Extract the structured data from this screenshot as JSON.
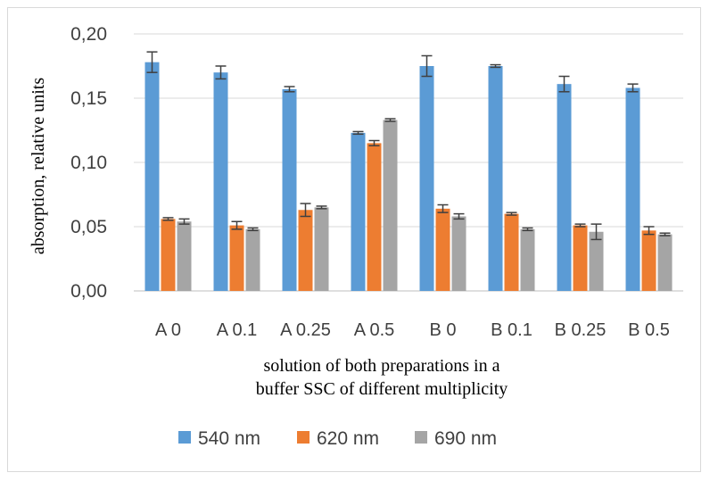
{
  "chart_data": {
    "type": "bar",
    "categories": [
      "A 0",
      "A 0.1",
      "A 0.25",
      "A 0.5",
      "B 0",
      "B 0.1",
      "B 0.25",
      "B 0.5"
    ],
    "series": [
      {
        "name": "540 nm",
        "color": "#5b9bd5",
        "values": [
          0.178,
          0.17,
          0.157,
          0.123,
          0.175,
          0.175,
          0.161,
          0.158
        ],
        "errors": [
          0.008,
          0.005,
          0.002,
          0.001,
          0.008,
          0.001,
          0.006,
          0.003
        ]
      },
      {
        "name": "620 nm",
        "color": "#ed7d31",
        "values": [
          0.056,
          0.051,
          0.063,
          0.115,
          0.064,
          0.06,
          0.051,
          0.047
        ],
        "errors": [
          0.001,
          0.003,
          0.005,
          0.002,
          0.003,
          0.001,
          0.001,
          0.003
        ]
      },
      {
        "name": "690 nm",
        "color": "#a5a5a5",
        "values": [
          0.054,
          0.048,
          0.065,
          0.133,
          0.058,
          0.048,
          0.046,
          0.044
        ],
        "errors": [
          0.002,
          0.001,
          0.001,
          0.001,
          0.002,
          0.001,
          0.006,
          0.001
        ]
      }
    ],
    "ylabel": "absorption, relative units",
    "xlabel_lines": [
      "solution of both preparations in a",
      "buffer SSC of different multiplicity"
    ],
    "ylim": [
      0,
      0.2
    ],
    "yticks": [
      "0,00",
      "0,05",
      "0,10",
      "0,15",
      "0,20"
    ],
    "grid": true,
    "legend_position": "bottom"
  }
}
